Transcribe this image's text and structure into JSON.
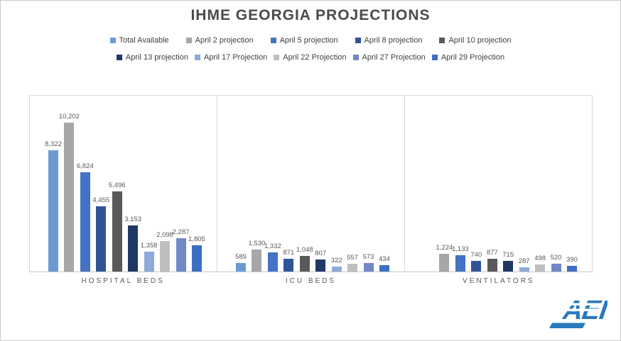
{
  "chart_data": {
    "type": "bar",
    "title": "IHME GEORGIA PROJECTIONS",
    "categories": [
      "HOSPITAL BEDS",
      "ICU BEDS",
      "VENTILATORS"
    ],
    "series": [
      {
        "name": "Total Available",
        "color": "#6C9BD2",
        "values": [
          8322,
          589,
          null
        ]
      },
      {
        "name": "April 2 projection",
        "color": "#A6A6A6",
        "values": [
          10202,
          1530,
          1224
        ]
      },
      {
        "name": "April 5 projection",
        "color": "#4472C4",
        "values": [
          6824,
          1332,
          1133
        ]
      },
      {
        "name": "April 8 projection",
        "color": "#2F5597",
        "values": [
          4455,
          871,
          740
        ]
      },
      {
        "name": "April 10 projection",
        "color": "#595959",
        "values": [
          5496,
          1048,
          877
        ]
      },
      {
        "name": "April 13 projection",
        "color": "#1F3864",
        "values": [
          3153,
          807,
          715
        ]
      },
      {
        "name": "April 17 Projection",
        "color": "#8EAADB",
        "values": [
          1358,
          322,
          287
        ]
      },
      {
        "name": "April 22 Projection",
        "color": "#BFBFBF",
        "values": [
          2098,
          557,
          498
        ]
      },
      {
        "name": "April 27 Projection",
        "color": "#7289C7",
        "values": [
          2287,
          573,
          520
        ]
      },
      {
        "name": "April 29 Projection",
        "color": "#3C6FC4",
        "values": [
          1805,
          434,
          390
        ]
      }
    ],
    "legend_rows": [
      [
        "Total Available",
        "April 2 projection",
        "April 5 projection",
        "April 8 projection",
        "April 10 projection"
      ],
      [
        "April 13 projection",
        "April 17 Projection",
        "April 22 Projection",
        "April 27 Projection",
        "April 29 Projection"
      ]
    ],
    "legend_position": "top",
    "gridlines": false,
    "value_labels": true,
    "ylim": [
      0,
      12100
    ]
  },
  "logo": {
    "text": "AEI",
    "color": "#2878BE"
  }
}
